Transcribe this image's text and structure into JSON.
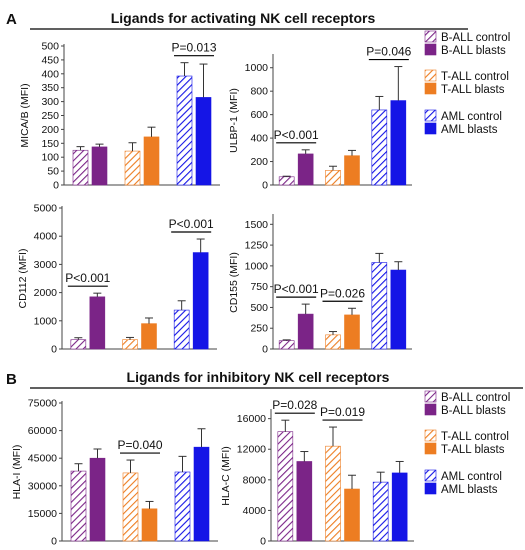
{
  "section_a": {
    "letter": "A",
    "title": "Ligands for activating NK cell receptors"
  },
  "section_b": {
    "letter": "B",
    "title": "Ligands for inhibitory  NK cell receptors"
  },
  "legend_entries": [
    {
      "name": "B-ALL control",
      "group": "B-ALL",
      "style": "hatched"
    },
    {
      "name": "B-ALL blasts",
      "group": "B-ALL",
      "style": "solid"
    },
    {
      "name": "T-ALL control",
      "group": "T-ALL",
      "style": "hatched"
    },
    {
      "name": "T-ALL blasts",
      "group": "T-ALL",
      "style": "solid"
    },
    {
      "name": "AML control",
      "group": "AML",
      "style": "hatched"
    },
    {
      "name": "AML blasts",
      "group": "AML",
      "style": "solid"
    }
  ],
  "colors": {
    "B-ALL": "#7b2487",
    "T-ALL": "#ed7d22",
    "AML": "#1515e6"
  },
  "chart_data": [
    {
      "type": "bar",
      "ylabel": "MICA/B (MFI)",
      "ylim": [
        0,
        500
      ],
      "yticks": [
        "0",
        "50",
        "100",
        "150",
        "200",
        "250",
        "300",
        "350",
        "400",
        "450",
        "500"
      ],
      "series": [
        {
          "name": "B-ALL control",
          "value": 125,
          "error": 13
        },
        {
          "name": "B-ALL blasts",
          "value": 137,
          "error": 10
        },
        {
          "name": "T-ALL control",
          "value": 122,
          "error": 30
        },
        {
          "name": "T-ALL blasts",
          "value": 173,
          "error": 35
        },
        {
          "name": "AML control",
          "value": 392,
          "error": 48
        },
        {
          "name": "AML blasts",
          "value": 315,
          "error": 120
        }
      ],
      "annotations": [
        {
          "text": "P=0.013",
          "from": 4,
          "to": 5
        }
      ]
    },
    {
      "type": "bar",
      "ylabel": "ULBP-1 (MFI)",
      "ylim": [
        0,
        1100
      ],
      "yticks": [
        "0",
        "200",
        "400",
        "600",
        "800",
        "1000"
      ],
      "series": [
        {
          "name": "B-ALL control",
          "value": 70,
          "error": 5
        },
        {
          "name": "B-ALL blasts",
          "value": 265,
          "error": 35
        },
        {
          "name": "T-ALL control",
          "value": 125,
          "error": 35
        },
        {
          "name": "T-ALL blasts",
          "value": 250,
          "error": 45
        },
        {
          "name": "AML control",
          "value": 640,
          "error": 115
        },
        {
          "name": "AML blasts",
          "value": 720,
          "error": 290
        }
      ],
      "annotations": [
        {
          "text": "P<0.001",
          "from": 0,
          "to": 1
        },
        {
          "text": "P=0.046",
          "from": 4,
          "to": 5
        }
      ]
    },
    {
      "type": "bar",
      "ylabel": "CD112 (MFI)",
      "ylim": [
        0,
        5000
      ],
      "yticks": [
        "0",
        "1000",
        "2000",
        "3000",
        "4000",
        "5000"
      ],
      "series": [
        {
          "name": "B-ALL control",
          "value": 330,
          "error": 70
        },
        {
          "name": "B-ALL blasts",
          "value": 1850,
          "error": 130
        },
        {
          "name": "T-ALL control",
          "value": 330,
          "error": 80
        },
        {
          "name": "T-ALL blasts",
          "value": 900,
          "error": 200
        },
        {
          "name": "AML control",
          "value": 1380,
          "error": 330
        },
        {
          "name": "AML blasts",
          "value": 3420,
          "error": 480
        }
      ],
      "annotations": [
        {
          "text": "P<0.001",
          "from": 0,
          "to": 1
        },
        {
          "text": "P<0.001",
          "from": 4,
          "to": 5
        }
      ]
    },
    {
      "type": "bar",
      "ylabel": "CD155 (MFI)",
      "ylim": [
        0,
        1600
      ],
      "yticks": [
        "0",
        "250",
        "500",
        "750",
        "1000",
        "1250",
        "1500"
      ],
      "series": [
        {
          "name": "B-ALL control",
          "value": 100,
          "error": 10
        },
        {
          "name": "B-ALL blasts",
          "value": 420,
          "error": 120
        },
        {
          "name": "T-ALL control",
          "value": 170,
          "error": 40
        },
        {
          "name": "T-ALL blasts",
          "value": 410,
          "error": 80
        },
        {
          "name": "AML control",
          "value": 1040,
          "error": 110
        },
        {
          "name": "AML blasts",
          "value": 950,
          "error": 100
        }
      ],
      "annotations": [
        {
          "text": "P<0.001",
          "from": 0,
          "to": 1
        },
        {
          "text": "P=0.026",
          "from": 2,
          "to": 3
        }
      ]
    },
    {
      "type": "bar",
      "ylabel": "HLA-I (MFI)",
      "ylim": [
        0,
        75000
      ],
      "yticks": [
        "0",
        "15000",
        "30000",
        "45000",
        "60000",
        "75000"
      ],
      "series": [
        {
          "name": "B-ALL control",
          "value": 38000,
          "error": 4000
        },
        {
          "name": "B-ALL blasts",
          "value": 45000,
          "error": 5000
        },
        {
          "name": "T-ALL control",
          "value": 37000,
          "error": 7000
        },
        {
          "name": "T-ALL blasts",
          "value": 17500,
          "error": 4000
        },
        {
          "name": "AML control",
          "value": 37500,
          "error": 8500
        },
        {
          "name": "AML blasts",
          "value": 51000,
          "error": 10000
        }
      ],
      "annotations": [
        {
          "text": "P=0.040",
          "from": 2,
          "to": 3
        }
      ]
    },
    {
      "type": "bar",
      "ylabel": "HLA-C (MFI)",
      "ylim": [
        0,
        17000
      ],
      "yticks": [
        "0",
        "4000",
        "8000",
        "12000",
        "16000"
      ],
      "series": [
        {
          "name": "B-ALL control",
          "value": 14300,
          "error": 1500
        },
        {
          "name": "B-ALL blasts",
          "value": 10400,
          "error": 1300
        },
        {
          "name": "T-ALL control",
          "value": 12400,
          "error": 2500
        },
        {
          "name": "T-ALL blasts",
          "value": 6800,
          "error": 1800
        },
        {
          "name": "AML control",
          "value": 7700,
          "error": 1300
        },
        {
          "name": "AML blasts",
          "value": 8900,
          "error": 1500
        }
      ],
      "annotations": [
        {
          "text": "P=0.028",
          "from": 0,
          "to": 1
        },
        {
          "text": "P=0.019",
          "from": 2,
          "to": 3
        }
      ]
    }
  ]
}
